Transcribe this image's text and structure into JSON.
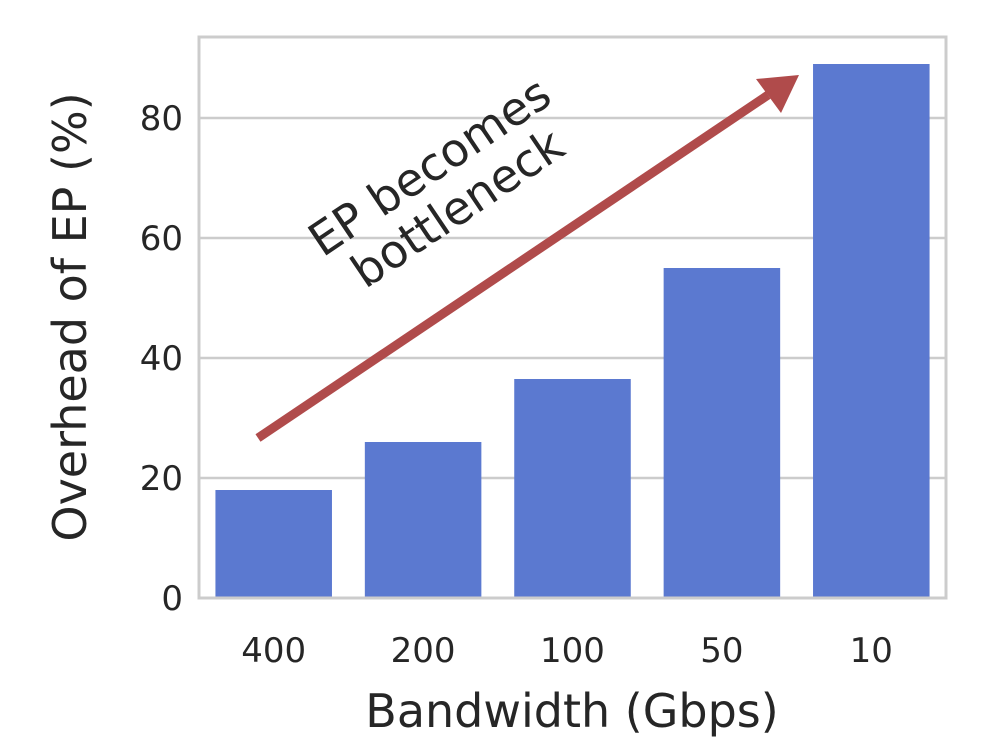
{
  "chart_data": {
    "type": "bar",
    "categories": [
      "400",
      "200",
      "100",
      "50",
      "10"
    ],
    "values": [
      18,
      26,
      36.5,
      55,
      89
    ],
    "xlabel": "Bandwidth (Gbps)",
    "ylabel": "Overhead of EP (%)",
    "ylim": [
      0,
      93.5
    ],
    "yticks": [
      0,
      20,
      40,
      60,
      80
    ],
    "grid": true,
    "annotation": {
      "line1": "EP becomes",
      "line2": "bottleneck"
    },
    "colors": {
      "bar": "#5b79d0",
      "arrow": "#b04b4b",
      "grid": "#cccccc",
      "frame": "#cccccc"
    }
  }
}
